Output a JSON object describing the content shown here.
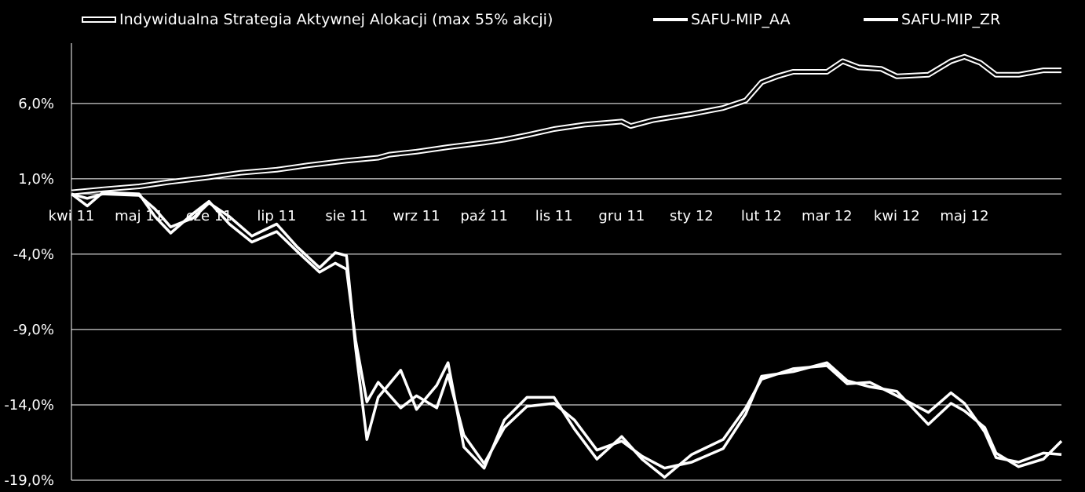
{
  "chart_data": {
    "type": "line",
    "title": "",
    "xlabel": "",
    "ylabel": "",
    "ylim": [
      -19,
      10
    ],
    "y_ticks": [
      "6,0%",
      "1,0%",
      "-4,0%",
      "-9,0%",
      "-14,0%",
      "-19,0%"
    ],
    "y_tick_values": [
      6,
      1,
      -4,
      -9,
      -14,
      -19
    ],
    "x_ticks": [
      "kwi 11",
      "maj 11",
      "cze 11",
      "lip 11",
      "sie 11",
      "wrz 11",
      "paź 11",
      "lis 11",
      "gru 11",
      "sty 12",
      "lut 12",
      "mar 12",
      "kwi 12",
      "maj 12"
    ],
    "x_tick_dates": [
      "2011-04-01",
      "2011-05-01",
      "2011-06-01",
      "2011-07-01",
      "2011-08-01",
      "2011-09-01",
      "2011-10-01",
      "2011-11-01",
      "2011-12-01",
      "2012-01-01",
      "2012-02-01",
      "2012-03-01",
      "2012-04-01",
      "2012-05-01"
    ],
    "x_range": [
      "2011-04-01",
      "2012-06-13"
    ],
    "grid": "horizontal",
    "legend_position": "top",
    "colors": {
      "background": "#000000",
      "line": "#ffffff",
      "grid": "#ffffff"
    },
    "series": [
      {
        "name": "Indywidualna Strategia Aktywnej Alokacji (max 55% akcji)",
        "style": "double",
        "points": [
          [
            "2011-04-01",
            0.1
          ],
          [
            "2011-04-15",
            0.3
          ],
          [
            "2011-05-01",
            0.5
          ],
          [
            "2011-05-15",
            0.8
          ],
          [
            "2011-06-01",
            1.1
          ],
          [
            "2011-06-15",
            1.4
          ],
          [
            "2011-07-01",
            1.6
          ],
          [
            "2011-07-15",
            1.9
          ],
          [
            "2011-08-01",
            2.2
          ],
          [
            "2011-08-15",
            2.4
          ],
          [
            "2011-08-20",
            2.6
          ],
          [
            "2011-09-01",
            2.8
          ],
          [
            "2011-09-15",
            3.1
          ],
          [
            "2011-10-01",
            3.4
          ],
          [
            "2011-10-10",
            3.6
          ],
          [
            "2011-10-20",
            3.9
          ],
          [
            "2011-11-01",
            4.3
          ],
          [
            "2011-11-15",
            4.6
          ],
          [
            "2011-12-01",
            4.8
          ],
          [
            "2011-12-05",
            4.5
          ],
          [
            "2011-12-15",
            4.9
          ],
          [
            "2012-01-01",
            5.3
          ],
          [
            "2012-01-15",
            5.7
          ],
          [
            "2012-01-25",
            6.2
          ],
          [
            "2012-02-01",
            7.4
          ],
          [
            "2012-02-08",
            7.8
          ],
          [
            "2012-02-15",
            8.1
          ],
          [
            "2012-02-25",
            8.1
          ],
          [
            "2012-03-01",
            8.1
          ],
          [
            "2012-03-08",
            8.8
          ],
          [
            "2012-03-15",
            8.4
          ],
          [
            "2012-03-25",
            8.3
          ],
          [
            "2012-04-01",
            7.8
          ],
          [
            "2012-04-15",
            7.9
          ],
          [
            "2012-04-25",
            8.8
          ],
          [
            "2012-05-01",
            9.1
          ],
          [
            "2012-05-08",
            8.7
          ],
          [
            "2012-05-15",
            7.9
          ],
          [
            "2012-05-25",
            7.9
          ],
          [
            "2012-06-05",
            8.2
          ],
          [
            "2012-06-13",
            8.2
          ]
        ]
      },
      {
        "name": "SAFU-MIP_AA",
        "style": "single",
        "points": [
          [
            "2011-04-01",
            0.0
          ],
          [
            "2011-04-08",
            -0.3
          ],
          [
            "2011-04-15",
            0.0
          ],
          [
            "2011-05-01",
            -0.1
          ],
          [
            "2011-05-08",
            -1.0
          ],
          [
            "2011-05-15",
            -2.2
          ],
          [
            "2011-05-25",
            -1.6
          ],
          [
            "2011-06-01",
            -0.6
          ],
          [
            "2011-06-10",
            -1.5
          ],
          [
            "2011-06-20",
            -2.8
          ],
          [
            "2011-07-01",
            -2.0
          ],
          [
            "2011-07-10",
            -3.5
          ],
          [
            "2011-07-20",
            -4.9
          ],
          [
            "2011-07-27",
            -3.9
          ],
          [
            "2011-08-01",
            -4.1
          ],
          [
            "2011-08-05",
            -10.2
          ],
          [
            "2011-08-10",
            -16.3
          ],
          [
            "2011-08-15",
            -13.5
          ],
          [
            "2011-08-25",
            -11.7
          ],
          [
            "2011-09-01",
            -14.3
          ],
          [
            "2011-09-10",
            -12.7
          ],
          [
            "2011-09-15",
            -11.2
          ],
          [
            "2011-09-22",
            -16.8
          ],
          [
            "2011-10-01",
            -18.2
          ],
          [
            "2011-10-10",
            -15.0
          ],
          [
            "2011-10-20",
            -13.5
          ],
          [
            "2011-11-01",
            -13.5
          ],
          [
            "2011-11-10",
            -15.6
          ],
          [
            "2011-11-20",
            -17.6
          ],
          [
            "2011-12-01",
            -16.1
          ],
          [
            "2011-12-10",
            -17.6
          ],
          [
            "2011-12-20",
            -18.8
          ],
          [
            "2012-01-01",
            -17.3
          ],
          [
            "2012-01-15",
            -16.3
          ],
          [
            "2012-01-25",
            -14.2
          ],
          [
            "2012-02-01",
            -12.3
          ],
          [
            "2012-02-15",
            -11.6
          ],
          [
            "2012-03-01",
            -11.4
          ],
          [
            "2012-03-10",
            -12.6
          ],
          [
            "2012-03-20",
            -12.5
          ],
          [
            "2012-04-01",
            -13.4
          ],
          [
            "2012-04-15",
            -14.5
          ],
          [
            "2012-04-25",
            -13.2
          ],
          [
            "2012-05-01",
            -13.9
          ],
          [
            "2012-05-10",
            -15.8
          ],
          [
            "2012-05-15",
            -17.5
          ],
          [
            "2012-05-25",
            -17.8
          ],
          [
            "2012-06-05",
            -17.2
          ],
          [
            "2012-06-13",
            -17.3
          ]
        ]
      },
      {
        "name": "SAFU-MIP_ZR",
        "style": "single",
        "points": [
          [
            "2011-04-01",
            0.0
          ],
          [
            "2011-04-08",
            -0.8
          ],
          [
            "2011-04-15",
            0.1
          ],
          [
            "2011-05-01",
            0.0
          ],
          [
            "2011-05-08",
            -1.5
          ],
          [
            "2011-05-15",
            -2.6
          ],
          [
            "2011-05-25",
            -1.3
          ],
          [
            "2011-06-01",
            -0.5
          ],
          [
            "2011-06-10",
            -2.0
          ],
          [
            "2011-06-20",
            -3.2
          ],
          [
            "2011-07-01",
            -2.5
          ],
          [
            "2011-07-10",
            -3.8
          ],
          [
            "2011-07-20",
            -5.2
          ],
          [
            "2011-07-27",
            -4.6
          ],
          [
            "2011-08-01",
            -5.0
          ],
          [
            "2011-08-05",
            -9.7
          ],
          [
            "2011-08-10",
            -13.8
          ],
          [
            "2011-08-15",
            -12.5
          ],
          [
            "2011-08-25",
            -14.2
          ],
          [
            "2011-09-01",
            -13.4
          ],
          [
            "2011-09-10",
            -14.2
          ],
          [
            "2011-09-15",
            -12.0
          ],
          [
            "2011-09-22",
            -16.0
          ],
          [
            "2011-10-01",
            -17.9
          ],
          [
            "2011-10-10",
            -15.5
          ],
          [
            "2011-10-20",
            -14.1
          ],
          [
            "2011-11-01",
            -13.9
          ],
          [
            "2011-11-10",
            -15.0
          ],
          [
            "2011-11-20",
            -17.0
          ],
          [
            "2011-12-01",
            -16.4
          ],
          [
            "2011-12-10",
            -17.4
          ],
          [
            "2011-12-20",
            -18.2
          ],
          [
            "2012-01-01",
            -17.8
          ],
          [
            "2012-01-15",
            -16.9
          ],
          [
            "2012-01-25",
            -14.6
          ],
          [
            "2012-02-01",
            -12.1
          ],
          [
            "2012-02-15",
            -11.8
          ],
          [
            "2012-03-01",
            -11.2
          ],
          [
            "2012-03-10",
            -12.4
          ],
          [
            "2012-03-20",
            -12.8
          ],
          [
            "2012-04-01",
            -13.1
          ],
          [
            "2012-04-15",
            -15.3
          ],
          [
            "2012-04-25",
            -13.9
          ],
          [
            "2012-05-01",
            -14.4
          ],
          [
            "2012-05-10",
            -15.5
          ],
          [
            "2012-05-15",
            -17.2
          ],
          [
            "2012-05-25",
            -18.1
          ],
          [
            "2012-06-05",
            -17.6
          ],
          [
            "2012-06-13",
            -16.4
          ]
        ]
      }
    ]
  }
}
